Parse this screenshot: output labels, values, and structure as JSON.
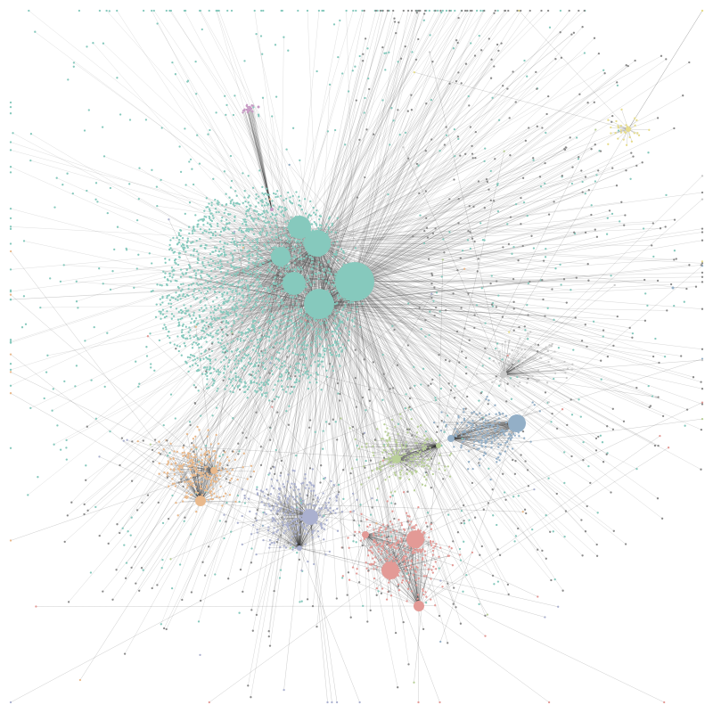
{
  "graph": {
    "background": "#ffffff",
    "edge_color": "#2e2e2e",
    "clusters": [
      {
        "name": "main-core",
        "color": "#86c9bd",
        "node_count": 2600,
        "hubs": 6
      },
      {
        "name": "peach",
        "color": "#e9b98c",
        "node_count": 260,
        "hubs": 2
      },
      {
        "name": "lavender",
        "color": "#aab0cf",
        "node_count": 300,
        "hubs": 2
      },
      {
        "name": "coral",
        "color": "#e39a96",
        "node_count": 320,
        "hubs": 4
      },
      {
        "name": "olive-green",
        "color": "#b9cf98",
        "node_count": 220,
        "hubs": 2
      },
      {
        "name": "steel-blue",
        "color": "#93afc7",
        "node_count": 200,
        "hubs": 2
      },
      {
        "name": "pale-yellow",
        "color": "#e6dc8c",
        "node_count": 35,
        "hubs": 1
      },
      {
        "name": "grey",
        "color": "#c9c9c9",
        "node_count": 90,
        "hubs": 1
      },
      {
        "name": "mauve",
        "color": "#c79bc4",
        "node_count": 25,
        "hubs": 1
      }
    ]
  }
}
